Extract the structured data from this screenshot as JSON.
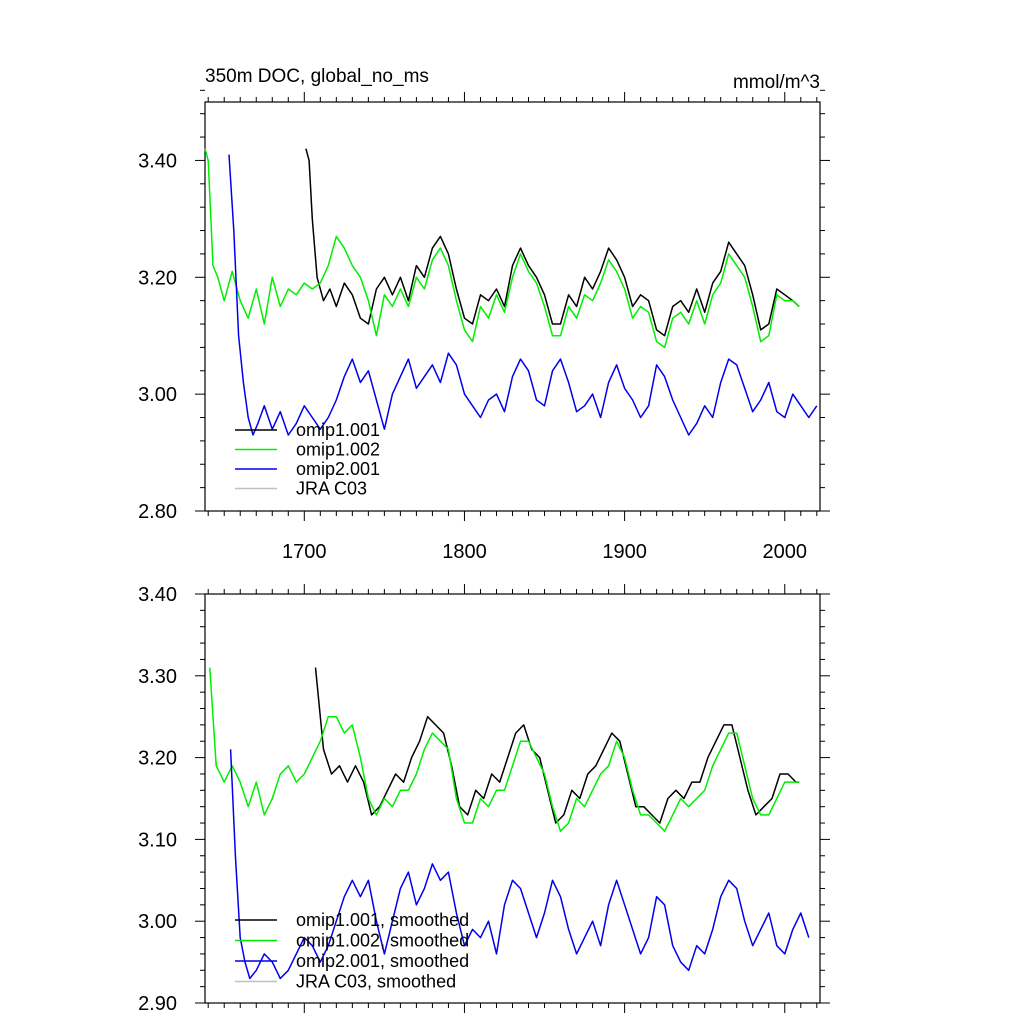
{
  "colors": {
    "omip1_001": "#000000",
    "omip1_002": "#00ee00",
    "omip2_001": "#0000ee",
    "jra_c03": "#c0c0c0"
  },
  "chart_data": [
    {
      "type": "line",
      "title": "350m DOC, global_no_ms",
      "units": "mmol/m^3",
      "xlim": [
        1638,
        2022
      ],
      "ylim": [
        2.8,
        3.5
      ],
      "x_ticks": [
        {
          "value": 1700,
          "label": "1700"
        },
        {
          "value": 1800,
          "label": "1800"
        },
        {
          "value": 1900,
          "label": "1900"
        },
        {
          "value": 2000,
          "label": "2000"
        }
      ],
      "y_ticks": [
        {
          "value": 2.8,
          "label": "2.80"
        },
        {
          "value": 3.0,
          "label": "3.00"
        },
        {
          "value": 3.2,
          "label": "3.20"
        },
        {
          "value": 3.4,
          "label": "3.40"
        }
      ],
      "legend_position": "bottom-left",
      "series": [
        {
          "name": "omip1.001",
          "color_key": "omip1_001",
          "x": [
            1701,
            1703,
            1705,
            1708,
            1712,
            1716,
            1720,
            1725,
            1730,
            1735,
            1740,
            1745,
            1750,
            1755,
            1760,
            1765,
            1770,
            1775,
            1780,
            1785,
            1790,
            1795,
            1800,
            1805,
            1810,
            1815,
            1820,
            1825,
            1830,
            1835,
            1840,
            1845,
            1850,
            1855,
            1860,
            1865,
            1870,
            1875,
            1880,
            1885,
            1890,
            1895,
            1900,
            1905,
            1910,
            1915,
            1920,
            1925,
            1930,
            1935,
            1940,
            1945,
            1950,
            1955,
            1960,
            1965,
            1970,
            1975,
            1980,
            1985,
            1990,
            1995,
            2000,
            2005,
            2009
          ],
          "y": [
            3.42,
            3.4,
            3.3,
            3.2,
            3.16,
            3.18,
            3.15,
            3.19,
            3.17,
            3.13,
            3.12,
            3.18,
            3.2,
            3.17,
            3.2,
            3.16,
            3.22,
            3.2,
            3.25,
            3.27,
            3.24,
            3.18,
            3.13,
            3.12,
            3.17,
            3.16,
            3.18,
            3.15,
            3.22,
            3.25,
            3.22,
            3.2,
            3.17,
            3.12,
            3.12,
            3.17,
            3.15,
            3.2,
            3.18,
            3.21,
            3.25,
            3.23,
            3.2,
            3.15,
            3.17,
            3.16,
            3.11,
            3.1,
            3.15,
            3.16,
            3.14,
            3.18,
            3.14,
            3.19,
            3.21,
            3.26,
            3.24,
            3.22,
            3.17,
            3.11,
            3.12,
            3.18,
            3.17,
            3.16,
            3.15
          ]
        },
        {
          "name": "omip1.002",
          "color_key": "omip1_002",
          "x": [
            1638,
            1640,
            1643,
            1646,
            1650,
            1655,
            1660,
            1665,
            1670,
            1675,
            1680,
            1685,
            1690,
            1695,
            1700,
            1705,
            1710,
            1715,
            1720,
            1725,
            1730,
            1735,
            1740,
            1745,
            1750,
            1755,
            1760,
            1765,
            1770,
            1775,
            1780,
            1785,
            1790,
            1795,
            1800,
            1805,
            1810,
            1815,
            1820,
            1825,
            1830,
            1835,
            1840,
            1845,
            1850,
            1855,
            1860,
            1865,
            1870,
            1875,
            1880,
            1885,
            1890,
            1895,
            1900,
            1905,
            1910,
            1915,
            1920,
            1925,
            1930,
            1935,
            1940,
            1945,
            1950,
            1955,
            1960,
            1965,
            1970,
            1975,
            1980,
            1985,
            1990,
            1995,
            2000,
            2005,
            2009
          ],
          "y": [
            3.42,
            3.4,
            3.22,
            3.2,
            3.16,
            3.21,
            3.16,
            3.13,
            3.18,
            3.12,
            3.2,
            3.15,
            3.18,
            3.17,
            3.19,
            3.18,
            3.19,
            3.22,
            3.27,
            3.25,
            3.22,
            3.2,
            3.16,
            3.1,
            3.17,
            3.15,
            3.18,
            3.15,
            3.2,
            3.18,
            3.23,
            3.25,
            3.22,
            3.16,
            3.11,
            3.09,
            3.15,
            3.13,
            3.17,
            3.14,
            3.2,
            3.24,
            3.21,
            3.19,
            3.15,
            3.1,
            3.1,
            3.15,
            3.13,
            3.17,
            3.16,
            3.19,
            3.23,
            3.21,
            3.18,
            3.13,
            3.15,
            3.14,
            3.09,
            3.08,
            3.13,
            3.14,
            3.12,
            3.16,
            3.12,
            3.17,
            3.19,
            3.24,
            3.22,
            3.2,
            3.15,
            3.09,
            3.1,
            3.17,
            3.16,
            3.16,
            3.15
          ]
        },
        {
          "name": "omip2.001",
          "color_key": "omip2_001",
          "x": [
            1653,
            1656,
            1659,
            1662,
            1665,
            1668,
            1671,
            1675,
            1680,
            1685,
            1690,
            1695,
            1700,
            1705,
            1710,
            1715,
            1720,
            1725,
            1730,
            1735,
            1740,
            1745,
            1750,
            1755,
            1760,
            1765,
            1770,
            1775,
            1780,
            1785,
            1790,
            1795,
            1800,
            1805,
            1810,
            1815,
            1820,
            1825,
            1830,
            1835,
            1840,
            1845,
            1850,
            1855,
            1860,
            1865,
            1870,
            1875,
            1880,
            1885,
            1890,
            1895,
            1900,
            1905,
            1910,
            1915,
            1920,
            1925,
            1930,
            1935,
            1940,
            1945,
            1950,
            1955,
            1960,
            1965,
            1970,
            1975,
            1980,
            1985,
            1990,
            1995,
            2000,
            2005,
            2010,
            2015,
            2020
          ],
          "y": [
            3.41,
            3.28,
            3.1,
            3.02,
            2.96,
            2.93,
            2.95,
            2.98,
            2.94,
            2.97,
            2.93,
            2.95,
            2.98,
            2.96,
            2.94,
            2.96,
            2.99,
            3.03,
            3.06,
            3.02,
            3.04,
            2.99,
            2.94,
            3.0,
            3.03,
            3.06,
            3.01,
            3.03,
            3.05,
            3.02,
            3.07,
            3.05,
            3.0,
            2.98,
            2.96,
            2.99,
            3.0,
            2.97,
            3.03,
            3.06,
            3.04,
            2.99,
            2.98,
            3.04,
            3.06,
            3.02,
            2.97,
            2.98,
            3.0,
            2.96,
            3.02,
            3.05,
            3.01,
            2.99,
            2.96,
            2.98,
            3.05,
            3.03,
            2.99,
            2.96,
            2.93,
            2.95,
            2.98,
            2.96,
            3.02,
            3.06,
            3.05,
            3.01,
            2.97,
            2.99,
            3.02,
            2.97,
            2.96,
            3.0,
            2.98,
            2.96,
            2.98
          ]
        },
        {
          "name": "JRA C03",
          "color_key": "jra_c03",
          "x": [],
          "y": []
        }
      ]
    },
    {
      "type": "line",
      "title": "",
      "units": "",
      "xlim": [
        1638,
        2022
      ],
      "ylim": [
        2.9,
        3.4
      ],
      "x_ticks": [],
      "y_ticks": [
        {
          "value": 2.9,
          "label": "2.90"
        },
        {
          "value": 3.0,
          "label": "3.00"
        },
        {
          "value": 3.1,
          "label": "3.10"
        },
        {
          "value": 3.2,
          "label": "3.20"
        },
        {
          "value": 3.3,
          "label": "3.30"
        },
        {
          "value": 3.4,
          "label": "3.40"
        }
      ],
      "legend_position": "bottom-left",
      "series": [
        {
          "name": "omip1.001, smoothed",
          "color_key": "omip1_001",
          "x": [
            1707,
            1712,
            1717,
            1722,
            1727,
            1732,
            1737,
            1742,
            1747,
            1752,
            1757,
            1762,
            1767,
            1772,
            1777,
            1782,
            1787,
            1792,
            1797,
            1802,
            1807,
            1812,
            1817,
            1822,
            1827,
            1832,
            1837,
            1842,
            1847,
            1852,
            1857,
            1862,
            1867,
            1872,
            1877,
            1882,
            1887,
            1892,
            1897,
            1902,
            1907,
            1912,
            1917,
            1922,
            1927,
            1932,
            1937,
            1942,
            1947,
            1952,
            1957,
            1962,
            1967,
            1972,
            1977,
            1982,
            1987,
            1992,
            1997,
            2002,
            2007,
            2009
          ],
          "y": [
            3.31,
            3.21,
            3.18,
            3.19,
            3.17,
            3.19,
            3.17,
            3.13,
            3.14,
            3.16,
            3.18,
            3.17,
            3.2,
            3.22,
            3.25,
            3.24,
            3.23,
            3.19,
            3.14,
            3.13,
            3.16,
            3.15,
            3.18,
            3.17,
            3.2,
            3.23,
            3.24,
            3.21,
            3.2,
            3.16,
            3.12,
            3.13,
            3.16,
            3.15,
            3.18,
            3.19,
            3.21,
            3.23,
            3.22,
            3.18,
            3.14,
            3.14,
            3.13,
            3.12,
            3.15,
            3.16,
            3.15,
            3.17,
            3.17,
            3.2,
            3.22,
            3.24,
            3.24,
            3.2,
            3.16,
            3.13,
            3.14,
            3.15,
            3.18,
            3.18,
            3.17,
            3.17
          ]
        },
        {
          "name": "omip1.002, smoothed",
          "color_key": "omip1_002",
          "x": [
            1641,
            1645,
            1650,
            1655,
            1660,
            1665,
            1670,
            1675,
            1680,
            1685,
            1690,
            1695,
            1700,
            1705,
            1710,
            1715,
            1720,
            1725,
            1730,
            1735,
            1740,
            1745,
            1750,
            1755,
            1760,
            1765,
            1770,
            1775,
            1780,
            1785,
            1790,
            1795,
            1800,
            1805,
            1810,
            1815,
            1820,
            1825,
            1830,
            1835,
            1840,
            1845,
            1850,
            1855,
            1860,
            1865,
            1870,
            1875,
            1880,
            1885,
            1890,
            1895,
            1900,
            1905,
            1910,
            1915,
            1920,
            1925,
            1930,
            1935,
            1940,
            1945,
            1950,
            1955,
            1960,
            1965,
            1970,
            1975,
            1980,
            1985,
            1990,
            1995,
            2000,
            2005,
            2009
          ],
          "y": [
            3.31,
            3.19,
            3.17,
            3.19,
            3.17,
            3.14,
            3.17,
            3.13,
            3.15,
            3.18,
            3.19,
            3.17,
            3.18,
            3.2,
            3.22,
            3.25,
            3.25,
            3.23,
            3.24,
            3.2,
            3.15,
            3.13,
            3.15,
            3.14,
            3.16,
            3.16,
            3.18,
            3.21,
            3.23,
            3.22,
            3.21,
            3.15,
            3.12,
            3.12,
            3.15,
            3.14,
            3.16,
            3.16,
            3.19,
            3.22,
            3.22,
            3.2,
            3.18,
            3.14,
            3.11,
            3.12,
            3.15,
            3.14,
            3.16,
            3.18,
            3.19,
            3.22,
            3.2,
            3.16,
            3.13,
            3.13,
            3.12,
            3.11,
            3.13,
            3.15,
            3.14,
            3.15,
            3.16,
            3.19,
            3.21,
            3.23,
            3.23,
            3.19,
            3.15,
            3.13,
            3.13,
            3.15,
            3.17,
            3.17,
            3.17
          ]
        },
        {
          "name": "omip2.001, smoothed",
          "color_key": "omip2_001",
          "x": [
            1654,
            1657,
            1660,
            1663,
            1666,
            1670,
            1675,
            1680,
            1685,
            1690,
            1695,
            1700,
            1705,
            1710,
            1715,
            1720,
            1725,
            1730,
            1735,
            1740,
            1745,
            1750,
            1755,
            1760,
            1765,
            1770,
            1775,
            1780,
            1785,
            1790,
            1795,
            1800,
            1805,
            1810,
            1815,
            1820,
            1825,
            1830,
            1835,
            1840,
            1845,
            1850,
            1855,
            1860,
            1865,
            1870,
            1875,
            1880,
            1885,
            1890,
            1895,
            1900,
            1905,
            1910,
            1915,
            1920,
            1925,
            1930,
            1935,
            1940,
            1945,
            1950,
            1955,
            1960,
            1965,
            1970,
            1975,
            1980,
            1985,
            1990,
            1995,
            2000,
            2005,
            2010,
            2015
          ],
          "y": [
            3.21,
            3.08,
            2.98,
            2.95,
            2.93,
            2.94,
            2.96,
            2.95,
            2.93,
            2.94,
            2.96,
            2.98,
            2.97,
            2.95,
            2.97,
            3.0,
            3.03,
            3.05,
            3.03,
            3.05,
            3.0,
            2.96,
            3.0,
            3.04,
            3.06,
            3.02,
            3.04,
            3.07,
            3.05,
            3.06,
            3.01,
            2.97,
            2.99,
            2.98,
            3.0,
            2.96,
            3.02,
            3.05,
            3.04,
            3.01,
            2.98,
            3.01,
            3.05,
            3.03,
            2.99,
            2.96,
            2.98,
            3.0,
            2.97,
            3.02,
            3.05,
            3.02,
            2.99,
            2.96,
            2.98,
            3.03,
            3.02,
            2.97,
            2.95,
            2.94,
            2.97,
            2.96,
            2.99,
            3.03,
            3.05,
            3.04,
            3.0,
            2.97,
            2.99,
            3.01,
            2.97,
            2.96,
            2.99,
            3.01,
            2.98
          ]
        },
        {
          "name": "JRA C03, smoothed",
          "color_key": "jra_c03",
          "x": [],
          "y": []
        }
      ]
    }
  ]
}
